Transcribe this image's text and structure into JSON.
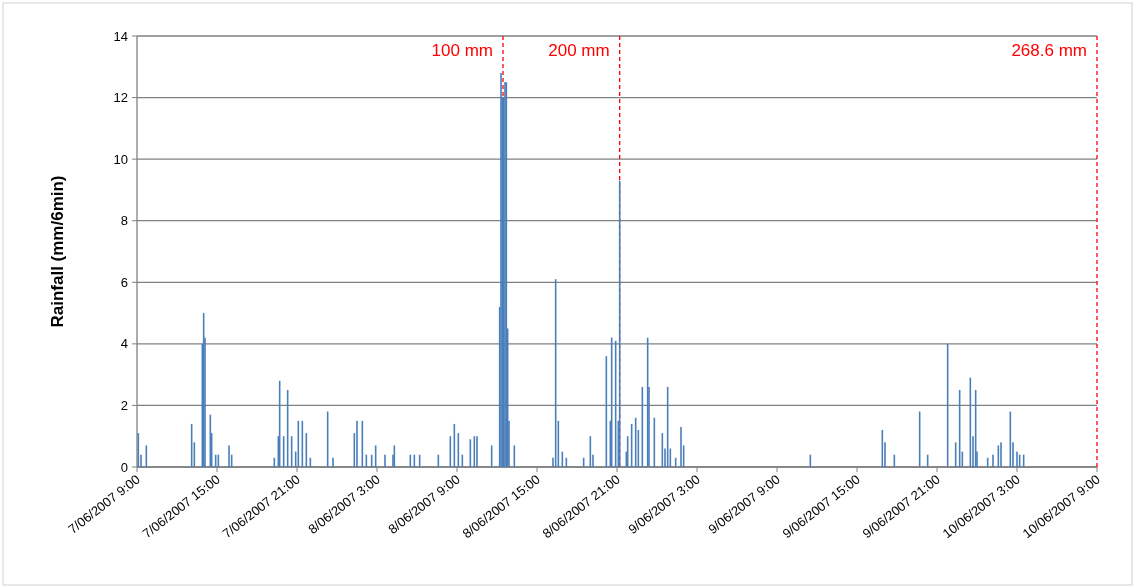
{
  "chart_data": {
    "type": "bar",
    "ylabel": "Rainfall (mm/6min)",
    "color": "#4a7ebb",
    "x": [
      "2007-06-07T09:06",
      "2007-06-07T09:18",
      "2007-06-07T09:42",
      "2007-06-07T13:06",
      "2007-06-07T13:18",
      "2007-06-07T13:54",
      "2007-06-07T14:00",
      "2007-06-07T14:06",
      "2007-06-07T14:30",
      "2007-06-07T14:36",
      "2007-06-07T14:54",
      "2007-06-07T15:06",
      "2007-06-07T15:54",
      "2007-06-07T16:06",
      "2007-06-07T19:18",
      "2007-06-07T19:36",
      "2007-06-07T19:42",
      "2007-06-07T20:00",
      "2007-06-07T20:18",
      "2007-06-07T20:36",
      "2007-06-07T20:54",
      "2007-06-07T21:06",
      "2007-06-07T21:24",
      "2007-06-07T21:42",
      "2007-06-07T22:00",
      "2007-06-07T23:18",
      "2007-06-07T23:42",
      "2007-06-08T01:18",
      "2007-06-08T01:30",
      "2007-06-08T01:54",
      "2007-06-08T02:12",
      "2007-06-08T02:36",
      "2007-06-08T02:54",
      "2007-06-08T03:36",
      "2007-06-08T04:12",
      "2007-06-08T04:18",
      "2007-06-08T05:30",
      "2007-06-08T05:48",
      "2007-06-08T06:12",
      "2007-06-08T07:36",
      "2007-06-08T08:30",
      "2007-06-08T08:48",
      "2007-06-08T09:06",
      "2007-06-08T09:24",
      "2007-06-08T10:00",
      "2007-06-08T10:18",
      "2007-06-08T10:30",
      "2007-06-08T11:36",
      "2007-06-08T12:12",
      "2007-06-08T12:18",
      "2007-06-08T12:24",
      "2007-06-08T12:30",
      "2007-06-08T12:36",
      "2007-06-08T12:42",
      "2007-06-08T12:48",
      "2007-06-08T12:54",
      "2007-06-08T13:18",
      "2007-06-08T16:12",
      "2007-06-08T16:24",
      "2007-06-08T16:36",
      "2007-06-08T16:54",
      "2007-06-08T17:12",
      "2007-06-08T18:30",
      "2007-06-08T19:00",
      "2007-06-08T19:12",
      "2007-06-08T20:12",
      "2007-06-08T20:30",
      "2007-06-08T20:36",
      "2007-06-08T20:54",
      "2007-06-08T21:06",
      "2007-06-08T21:12",
      "2007-06-08T21:42",
      "2007-06-08T21:48",
      "2007-06-08T22:06",
      "2007-06-08T22:24",
      "2007-06-08T22:36",
      "2007-06-08T22:54",
      "2007-06-08T23:18",
      "2007-06-08T23:24",
      "2007-06-08T23:48",
      "2007-06-09T00:24",
      "2007-06-09T00:36",
      "2007-06-09T00:48",
      "2007-06-09T01:00",
      "2007-06-09T01:24",
      "2007-06-09T01:48",
      "2007-06-09T02:00",
      "2007-06-09T11:30",
      "2007-06-09T16:54",
      "2007-06-09T17:06",
      "2007-06-09T17:48",
      "2007-06-09T19:42",
      "2007-06-09T20:18",
      "2007-06-09T21:48",
      "2007-06-09T22:24",
      "2007-06-09T22:42",
      "2007-06-09T22:54",
      "2007-06-09T23:30",
      "2007-06-09T23:42",
      "2007-06-09T23:54",
      "2007-06-10T00:00",
      "2007-06-10T00:48",
      "2007-06-10T01:12",
      "2007-06-10T01:36",
      "2007-06-10T01:48",
      "2007-06-10T02:30",
      "2007-06-10T02:42",
      "2007-06-10T03:00",
      "2007-06-10T03:12",
      "2007-06-10T03:30"
    ],
    "values": [
      1.1,
      0.4,
      0.7,
      1.4,
      0.8,
      4.0,
      5.0,
      4.2,
      1.7,
      1.1,
      0.4,
      0.4,
      0.7,
      0.4,
      0.3,
      1.0,
      2.8,
      1.0,
      2.5,
      1.0,
      0.5,
      1.5,
      1.5,
      1.1,
      0.3,
      1.8,
      0.3,
      1.1,
      1.5,
      1.5,
      0.4,
      0.4,
      0.7,
      0.4,
      0.4,
      0.7,
      0.4,
      0.4,
      0.4,
      0.4,
      1.0,
      1.4,
      1.1,
      0.4,
      0.9,
      1.0,
      1.0,
      0.7,
      5.2,
      12.8,
      12.0,
      12.0,
      12.5,
      12.5,
      4.5,
      1.5,
      0.7,
      0.3,
      6.1,
      1.5,
      0.5,
      0.3,
      0.3,
      1.0,
      0.4,
      3.6,
      1.5,
      4.2,
      4.1,
      1.5,
      9.3,
      0.5,
      1.0,
      1.4,
      1.6,
      1.2,
      2.6,
      4.2,
      2.6,
      1.6,
      1.1,
      0.6,
      2.6,
      0.6,
      0.3,
      1.3,
      0.7,
      0.4,
      1.2,
      0.8,
      0.4,
      1.8,
      0.4,
      4.0,
      0.8,
      2.5,
      0.5,
      2.9,
      1.0,
      2.5,
      0.5,
      0.3,
      0.4,
      0.7,
      0.8,
      1.8,
      0.8,
      0.5,
      0.4,
      0.4
    ],
    "xlim": [
      "2007-06-07T09:00",
      "2007-06-10T09:00"
    ],
    "xticks": [
      {
        "value": "2007-06-07T09:00",
        "label": "7/06/2007 9:00"
      },
      {
        "value": "2007-06-07T15:00",
        "label": "7/06/2007 15:00"
      },
      {
        "value": "2007-06-07T21:00",
        "label": "7/06/2007 21:00"
      },
      {
        "value": "2007-06-08T03:00",
        "label": "8/06/2007 3:00"
      },
      {
        "value": "2007-06-08T09:00",
        "label": "8/06/2007 9:00"
      },
      {
        "value": "2007-06-08T15:00",
        "label": "8/06/2007 15:00"
      },
      {
        "value": "2007-06-08T21:00",
        "label": "8/06/2007 21:00"
      },
      {
        "value": "2007-06-09T03:00",
        "label": "9/06/2007 3:00"
      },
      {
        "value": "2007-06-09T09:00",
        "label": "9/06/2007 9:00"
      },
      {
        "value": "2007-06-09T15:00",
        "label": "9/06/2007 15:00"
      },
      {
        "value": "2007-06-09T21:00",
        "label": "9/06/2007 21:00"
      },
      {
        "value": "2007-06-10T03:00",
        "label": "10/06/2007 3:00"
      },
      {
        "value": "2007-06-10T09:00",
        "label": "10/06/2007 9:00"
      }
    ],
    "ylim": [
      0,
      14
    ],
    "yticks": [
      0,
      2,
      4,
      6,
      8,
      10,
      12,
      14
    ],
    "grid": "y",
    "ref_lines": [
      {
        "axis": "x",
        "value": "2007-06-08T12:27",
        "label": "100 mm",
        "color": "#ff0000",
        "line_style": "dashed"
      },
      {
        "axis": "x",
        "value": "2007-06-08T21:12",
        "label": "200 mm",
        "color": "#ff0000",
        "line_style": "dashed"
      },
      {
        "axis": "x",
        "value": "2007-06-10T09:00",
        "label": "268.6 mm",
        "color": "#ff0000",
        "line_style": "dashed"
      }
    ]
  }
}
